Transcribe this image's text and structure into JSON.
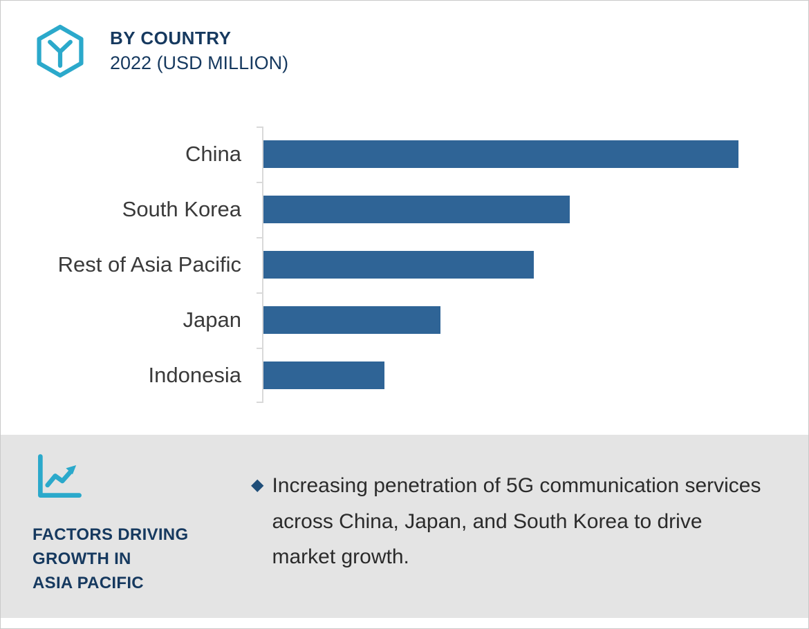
{
  "header": {
    "title": "BY COUNTRY",
    "subtitle": "2022 (USD MILLION)"
  },
  "chart_data": {
    "type": "bar",
    "orientation": "horizontal",
    "title": "BY COUNTRY 2022 (USD MILLION)",
    "categories": [
      "China",
      "South Korea",
      "Rest of Asia Pacific",
      "Japan",
      "Indonesia"
    ],
    "values": [
      100,
      64.5,
      56.9,
      37.3,
      25.5
    ],
    "values_note": "no numeric axis or data labels shown; values estimated as percent of longest bar (China = 100)",
    "xlabel": "",
    "ylabel": "",
    "xlim": [
      0,
      108
    ],
    "grid": false,
    "legend": false,
    "bar_color": "#2F6496"
  },
  "footer": {
    "heading_lines": [
      "FACTORS DRIVING",
      "GROWTH IN",
      "ASIA PACIFIC"
    ],
    "bullet_glyph": "◆",
    "bullet_text": "Increasing penetration of 5G communication services across China, Japan, and South Korea to drive market growth."
  },
  "colors": {
    "accent_teal": "#2BA9CB",
    "navy": "#16395F",
    "bar_blue": "#2F6496",
    "panel_gray": "#E4E4E4",
    "text_dark": "#2B2B2B",
    "axis_gray": "#D9D9D9",
    "bullet_navy": "#1F4E79"
  }
}
